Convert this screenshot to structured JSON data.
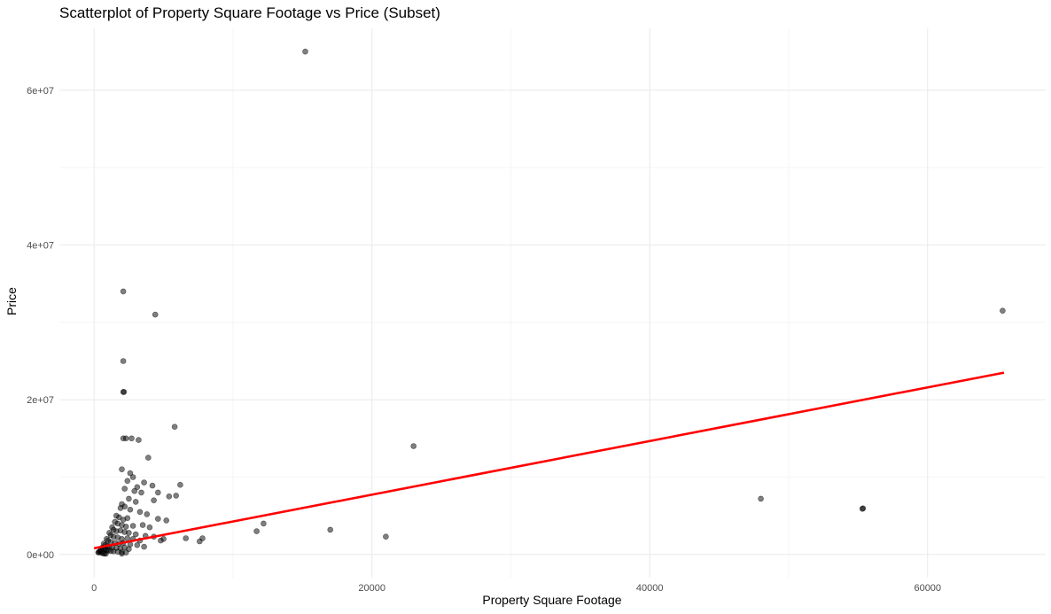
{
  "chart_data": {
    "type": "scatter",
    "title": "Scatterplot of Property Square Footage vs Price (Subset)",
    "xlabel": "Property Square Footage",
    "ylabel": "Price",
    "xlim": [
      -2500,
      68500
    ],
    "ylim": [
      -3000000,
      68000000
    ],
    "x_ticks": [
      0,
      20000,
      40000,
      60000
    ],
    "x_tick_labels": [
      "0",
      "20000",
      "40000",
      "60000"
    ],
    "y_ticks": [
      0,
      20000000,
      40000000,
      60000000
    ],
    "y_tick_labels": [
      "0e+00",
      "2e+07",
      "4e+07",
      "6e+07"
    ],
    "grid": true,
    "legend": "none",
    "point_color": "#000000",
    "point_opacity": 0.5,
    "trend_color": "#ff0000",
    "series": [
      {
        "values": [
          [
            15200,
            65000000
          ],
          [
            65400,
            31500000
          ],
          [
            2100,
            34000000
          ],
          [
            4400,
            31000000
          ],
          [
            2100,
            25000000
          ],
          [
            2100,
            21000000
          ],
          [
            2150,
            21000000
          ],
          [
            5800,
            16500000
          ],
          [
            2100,
            15000000
          ],
          [
            2300,
            15000000
          ],
          [
            2700,
            15000000
          ],
          [
            3200,
            14800000
          ],
          [
            23000,
            14000000
          ],
          [
            3900,
            12500000
          ],
          [
            2000,
            11000000
          ],
          [
            2600,
            10500000
          ],
          [
            2800,
            10000000
          ],
          [
            2400,
            9500000
          ],
          [
            3600,
            9300000
          ],
          [
            4200,
            8900000
          ],
          [
            3100,
            8700000
          ],
          [
            2200,
            8500000
          ],
          [
            2900,
            8200000
          ],
          [
            3400,
            8000000
          ],
          [
            4600,
            8000000
          ],
          [
            6200,
            9000000
          ],
          [
            5400,
            7500000
          ],
          [
            5900,
            7600000
          ],
          [
            4300,
            7000000
          ],
          [
            2500,
            7200000
          ],
          [
            3000,
            6800000
          ],
          [
            2000,
            6500000
          ],
          [
            1900,
            6000000
          ],
          [
            2200,
            6200000
          ],
          [
            2600,
            5800000
          ],
          [
            3300,
            5500000
          ],
          [
            3800,
            5200000
          ],
          [
            1600,
            5000000
          ],
          [
            1800,
            4800000
          ],
          [
            2100,
            4500000
          ],
          [
            2400,
            4700000
          ],
          [
            4600,
            4600000
          ],
          [
            5200,
            4400000
          ],
          [
            1500,
            4200000
          ],
          [
            1700,
            4000000
          ],
          [
            2000,
            3800000
          ],
          [
            2300,
            3600000
          ],
          [
            2800,
            3700000
          ],
          [
            3500,
            3800000
          ],
          [
            4000,
            3500000
          ],
          [
            1300,
            3500000
          ],
          [
            1400,
            3200000
          ],
          [
            1600,
            3000000
          ],
          [
            1900,
            3100000
          ],
          [
            2200,
            2900000
          ],
          [
            2500,
            2800000
          ],
          [
            3000,
            2600000
          ],
          [
            3700,
            2400000
          ],
          [
            4300,
            2300000
          ],
          [
            1100,
            2800000
          ],
          [
            1200,
            2500000
          ],
          [
            1400,
            2300000
          ],
          [
            1700,
            2200000
          ],
          [
            2000,
            2000000
          ],
          [
            2400,
            2100000
          ],
          [
            2800,
            2000000
          ],
          [
            3300,
            1800000
          ],
          [
            4800,
            1800000
          ],
          [
            5000,
            2000000
          ],
          [
            6600,
            2100000
          ],
          [
            7800,
            2100000
          ],
          [
            7600,
            1700000
          ],
          [
            900,
            2000000
          ],
          [
            1000,
            1800000
          ],
          [
            1200,
            1600000
          ],
          [
            1500,
            1500000
          ],
          [
            1800,
            1400000
          ],
          [
            2100,
            1500000
          ],
          [
            2600,
            1300000
          ],
          [
            3100,
            1200000
          ],
          [
            3600,
            1000000
          ],
          [
            700,
            1400000
          ],
          [
            800,
            1200000
          ],
          [
            950,
            1100000
          ],
          [
            1100,
            1000000
          ],
          [
            1300,
            900000
          ],
          [
            1600,
            850000
          ],
          [
            1900,
            800000
          ],
          [
            2200,
            900000
          ],
          [
            2500,
            700000
          ],
          [
            600,
            900000
          ],
          [
            700,
            750000
          ],
          [
            800,
            650000
          ],
          [
            900,
            550000
          ],
          [
            1000,
            500000
          ],
          [
            1200,
            450000
          ],
          [
            1400,
            400000
          ],
          [
            1700,
            350000
          ],
          [
            2000,
            300000
          ],
          [
            2300,
            250000
          ],
          [
            500,
            600000
          ],
          [
            450,
            450000
          ],
          [
            400,
            350000
          ],
          [
            350,
            300000
          ],
          [
            300,
            250000
          ],
          [
            550,
            200000
          ],
          [
            650,
            150000
          ],
          [
            750,
            120000
          ],
          [
            850,
            100000
          ],
          [
            2000,
            100000
          ],
          [
            11700,
            3000000
          ],
          [
            12200,
            4000000
          ],
          [
            17000,
            3200000
          ],
          [
            21000,
            2300000
          ],
          [
            48000,
            7200000
          ],
          [
            55300,
            5900000
          ],
          [
            55350,
            5950000
          ]
        ]
      }
    ],
    "trend_line": {
      "x": [
        0,
        65500
      ],
      "y": [
        800000,
        23500000
      ]
    }
  }
}
